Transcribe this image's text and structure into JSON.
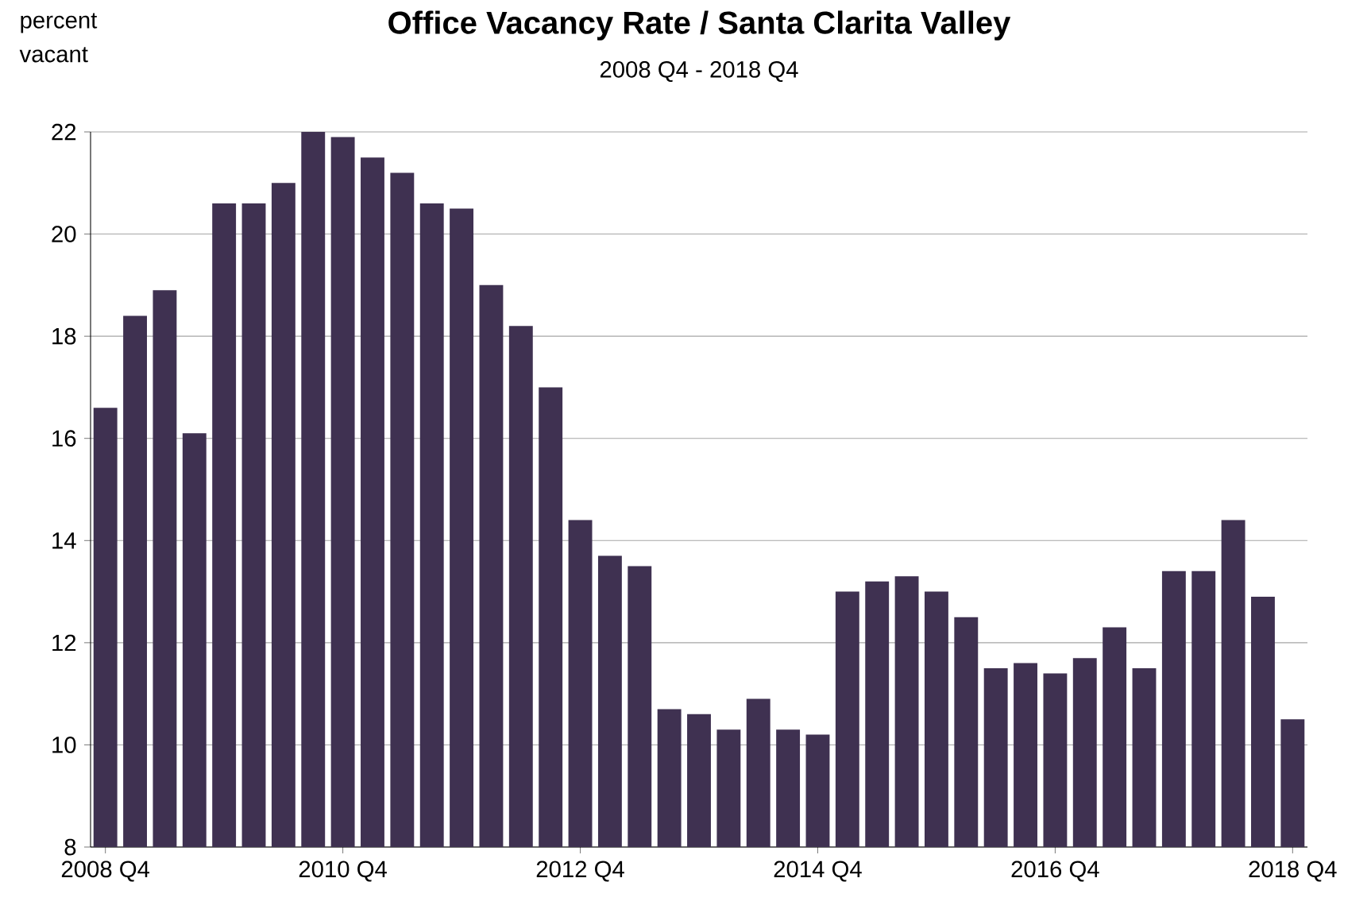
{
  "chart_data": {
    "type": "bar",
    "title": "Office Vacancy Rate / Santa Clarita Valley",
    "subtitle": "2008 Q4 - 2018 Q4",
    "ylabel": "percent vacant",
    "categories": [
      "2008 Q4",
      null,
      null,
      null,
      null,
      null,
      null,
      null,
      "2010 Q4",
      null,
      null,
      null,
      null,
      null,
      null,
      null,
      "2012 Q4",
      null,
      null,
      null,
      null,
      null,
      null,
      null,
      "2014 Q4",
      null,
      null,
      null,
      null,
      null,
      null,
      null,
      "2016 Q4",
      null,
      null,
      null,
      null,
      null,
      null,
      null,
      "2018 Q4"
    ],
    "values": [
      16.6,
      18.4,
      18.9,
      16.1,
      20.6,
      20.6,
      21.0,
      22.0,
      21.9,
      21.5,
      21.2,
      20.6,
      20.5,
      19.0,
      18.2,
      17.0,
      14.4,
      13.7,
      13.5,
      10.7,
      10.6,
      10.3,
      10.9,
      10.3,
      10.2,
      13.0,
      13.2,
      13.3,
      13.0,
      12.5,
      11.5,
      11.6,
      11.4,
      11.7,
      12.3,
      11.5,
      13.4,
      13.4,
      14.4,
      12.9,
      10.5
    ],
    "color": "#3f3151",
    "ylim": [
      8,
      22
    ],
    "yticks": [
      8,
      10,
      12,
      14,
      16,
      18,
      20,
      22
    ],
    "grid": "y"
  }
}
